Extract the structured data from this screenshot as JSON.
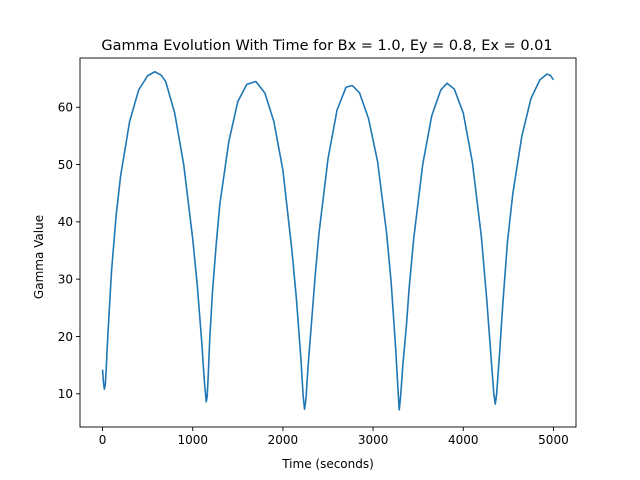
{
  "chart_data": {
    "type": "line",
    "title": "Gamma Evolution With Time for Bx = 1.0, Ey = 0.8, Ex = 0.01",
    "xlabel": "Time (seconds)",
    "ylabel": "Gamma Value",
    "xlim": [
      -250,
      5250
    ],
    "ylim": [
      4.2,
      68.6
    ],
    "xticks": [
      0,
      1000,
      2000,
      3000,
      4000,
      5000
    ],
    "yticks": [
      10,
      20,
      30,
      40,
      50,
      60
    ],
    "grid": false,
    "legend": "none",
    "series": [
      {
        "color": "#1f77b4",
        "x": [
          0,
          10,
          20,
          30,
          40,
          50,
          60,
          80,
          100,
          150,
          200,
          300,
          400,
          500,
          580,
          650,
          700,
          800,
          900,
          1000,
          1050,
          1100,
          1130,
          1150,
          1160,
          1170,
          1190,
          1220,
          1260,
          1300,
          1400,
          1500,
          1600,
          1700,
          1800,
          1900,
          2000,
          2100,
          2150,
          2200,
          2225,
          2240,
          2255,
          2280,
          2320,
          2360,
          2400,
          2500,
          2600,
          2700,
          2770,
          2850,
          2950,
          3050,
          3150,
          3200,
          3250,
          3275,
          3290,
          3305,
          3330,
          3370,
          3400,
          3450,
          3550,
          3650,
          3750,
          3820,
          3900,
          4000,
          4100,
          4200,
          4260,
          4310,
          4340,
          4355,
          4370,
          4400,
          4440,
          4490,
          4550,
          4650,
          4750,
          4850,
          4930,
          4970,
          5000
        ],
        "y": [
          14.2,
          12.0,
          10.8,
          11.5,
          14.0,
          17.5,
          20.5,
          26.0,
          31.5,
          41.0,
          48.0,
          57.5,
          63.0,
          65.5,
          66.2,
          65.6,
          64.5,
          59.0,
          50.0,
          37.0,
          29.0,
          19.0,
          12.0,
          8.6,
          9.5,
          12.5,
          20.0,
          28.0,
          36.0,
          43.0,
          54.0,
          61.0,
          64.0,
          64.5,
          62.5,
          57.5,
          49.0,
          35.0,
          26.5,
          16.0,
          9.5,
          7.3,
          9.0,
          15.0,
          23.0,
          31.0,
          38.0,
          51.0,
          59.5,
          63.5,
          63.8,
          62.5,
          58.0,
          50.5,
          38.0,
          29.5,
          18.0,
          11.0,
          7.2,
          9.5,
          15.0,
          22.0,
          28.5,
          37.0,
          50.0,
          58.5,
          63.0,
          64.2,
          63.2,
          59.0,
          50.5,
          37.5,
          26.5,
          16.0,
          9.8,
          8.2,
          10.0,
          16.5,
          26.0,
          36.5,
          45.0,
          55.0,
          61.5,
          64.8,
          65.8,
          65.5,
          64.8
        ]
      }
    ]
  }
}
